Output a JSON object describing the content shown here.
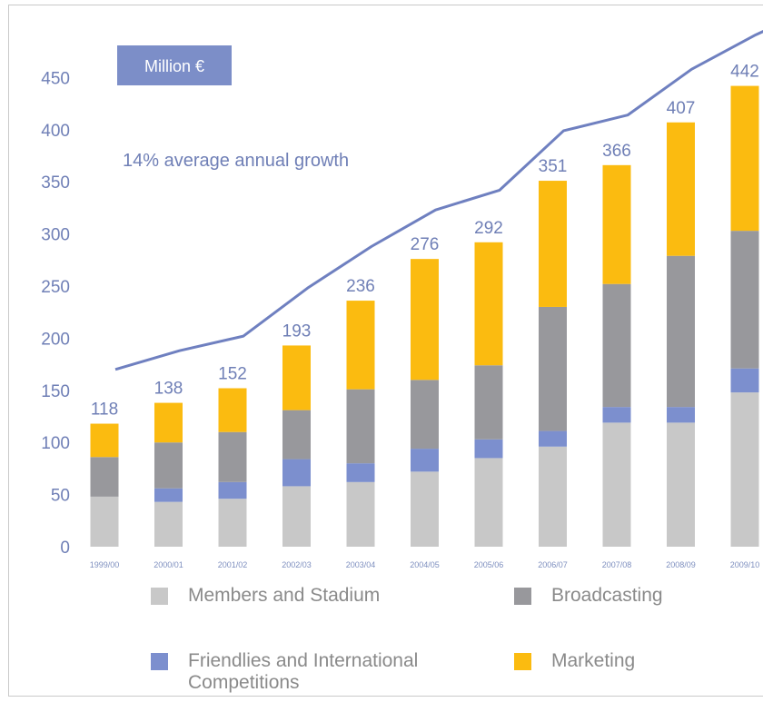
{
  "chart_data": {
    "type": "bar",
    "stacked": true,
    "unit_label": "Million €",
    "annotation": "14% average annual growth",
    "categories": [
      "1999/00",
      "2000/01",
      "2001/02",
      "2002/03",
      "2003/04",
      "2004/05",
      "2005/06",
      "2006/07",
      "2007/08",
      "2008/09",
      "2009/10"
    ],
    "series": [
      {
        "name": "Members and Stadium",
        "color": "#c8c8c8",
        "values": [
          48,
          43,
          46,
          58,
          62,
          72,
          85,
          96,
          119,
          119,
          148
        ]
      },
      {
        "name": "Friendlies and International Competitions",
        "color": "#7c8fce",
        "values": [
          0,
          13,
          16,
          26,
          18,
          22,
          18,
          15,
          15,
          15,
          23
        ]
      },
      {
        "name": "Broadcasting",
        "color": "#98989c",
        "values": [
          38,
          44,
          48,
          47,
          71,
          66,
          71,
          119,
          118,
          145,
          132
        ]
      },
      {
        "name": "Marketing",
        "color": "#fbbb10",
        "values": [
          32,
          38,
          42,
          62,
          85,
          116,
          118,
          121,
          114,
          128,
          139
        ]
      }
    ],
    "totals": [
      118,
      138,
      152,
      193,
      236,
      276,
      292,
      351,
      366,
      407,
      442
    ],
    "trend_line": {
      "color": "#6f80c0",
      "values": [
        170,
        188,
        202,
        248,
        288,
        323,
        342,
        399,
        414,
        458,
        491
      ]
    },
    "yticks": [
      0,
      50,
      100,
      150,
      200,
      250,
      300,
      350,
      400,
      450
    ],
    "ylim": [
      0,
      450
    ],
    "xlabel": "",
    "ylabel": "",
    "legend_position": "bottom",
    "grid": false
  }
}
